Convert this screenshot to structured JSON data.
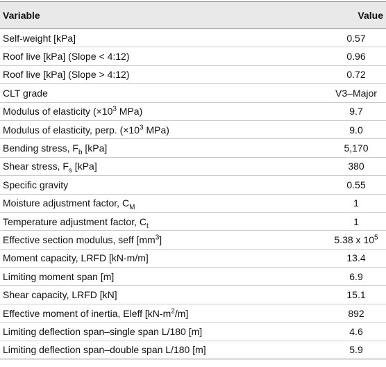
{
  "header": {
    "variable": "Variable",
    "value": "Value"
  },
  "rows": [
    [
      [
        {
          "t": "Self-weight [kPa]"
        }
      ],
      [
        {
          "t": "0.57"
        }
      ]
    ],
    [
      [
        {
          "t": "Roof live [kPa] (Slope < 4:12)"
        }
      ],
      [
        {
          "t": "0.96"
        }
      ]
    ],
    [
      [
        {
          "t": "Roof live [kPa] (Slope > 4:12)"
        }
      ],
      [
        {
          "t": "0.72"
        }
      ]
    ],
    [
      [
        {
          "t": "CLT grade"
        }
      ],
      [
        {
          "t": "V3–Major"
        }
      ]
    ],
    [
      [
        {
          "t": "Modulus of elasticity (×10"
        },
        {
          "t": "3",
          "s": "sup"
        },
        {
          "t": " MPa)"
        }
      ],
      [
        {
          "t": "9.7"
        }
      ]
    ],
    [
      [
        {
          "t": "Modulus of elasticity, perp. (×10"
        },
        {
          "t": "3",
          "s": "sup"
        },
        {
          "t": " MPa)"
        }
      ],
      [
        {
          "t": "9.0"
        }
      ]
    ],
    [
      [
        {
          "t": "Bending stress, F"
        },
        {
          "t": "b",
          "s": "sub"
        },
        {
          "t": " [kPa]"
        }
      ],
      [
        {
          "t": "5,170"
        }
      ]
    ],
    [
      [
        {
          "t": "Shear stress, F"
        },
        {
          "t": "s",
          "s": "sub"
        },
        {
          "t": " [kPa]"
        }
      ],
      [
        {
          "t": "380"
        }
      ]
    ],
    [
      [
        {
          "t": "Specific gravity"
        }
      ],
      [
        {
          "t": "0.55"
        }
      ]
    ],
    [
      [
        {
          "t": "Moisture adjustment factor, C"
        },
        {
          "t": "M",
          "s": "sub"
        }
      ],
      [
        {
          "t": "1"
        }
      ]
    ],
    [
      [
        {
          "t": "Temperature adjustment factor, C"
        },
        {
          "t": "t",
          "s": "sub"
        }
      ],
      [
        {
          "t": "1"
        }
      ]
    ],
    [
      [
        {
          "t": "Effective section modulus, seff [mm"
        },
        {
          "t": "3",
          "s": "sup"
        },
        {
          "t": "]"
        }
      ],
      [
        {
          "t": "5.38 x 10"
        },
        {
          "t": "5",
          "s": "sup"
        }
      ]
    ],
    [
      [
        {
          "t": "Moment capacity, LRFD [kN-m/m]"
        }
      ],
      [
        {
          "t": "13.4"
        }
      ]
    ],
    [
      [
        {
          "t": "Limiting moment span [m]"
        }
      ],
      [
        {
          "t": "6.9"
        }
      ]
    ],
    [
      [
        {
          "t": "Shear capacity, LRFD [kN]"
        }
      ],
      [
        {
          "t": "15.1"
        }
      ]
    ],
    [
      [
        {
          "t": "Effective moment of inertia, Eleff [kN-m"
        },
        {
          "t": "2",
          "s": "sup"
        },
        {
          "t": "/m]"
        }
      ],
      [
        {
          "t": "892"
        }
      ]
    ],
    [
      [
        {
          "t": "Limiting deflection span–single span L/180 [m]"
        }
      ],
      [
        {
          "t": "4.6"
        }
      ]
    ],
    [
      [
        {
          "t": "Limiting deflection span–double span L/180 [m]"
        }
      ],
      [
        {
          "t": "5.9"
        }
      ]
    ]
  ]
}
